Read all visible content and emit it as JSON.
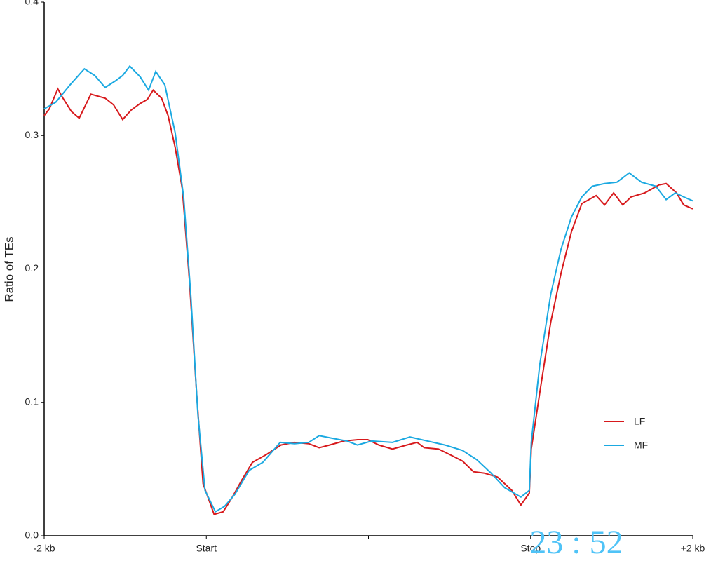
{
  "chart_data": {
    "type": "line",
    "y_label": "Ratio of TEs",
    "xlim": [
      0,
      100
    ],
    "xticks": [
      {
        "value": 0,
        "label": "-2 kb"
      },
      {
        "value": 25,
        "label": "Start"
      },
      {
        "value": 50,
        "label": null
      },
      {
        "value": 75,
        "label": "Stop"
      },
      {
        "value": 100,
        "label": "+2 kb"
      }
    ],
    "ylim": [
      0,
      0.4
    ],
    "yticks": [
      {
        "value": 0,
        "label": "0.0"
      },
      0.1,
      0.2,
      0.3,
      0.4
    ],
    "grid": false,
    "legend_position": "lower-right",
    "overlay_text": "23 : 52",
    "series": [
      {
        "name": "LF",
        "color": "#d7191c",
        "x": [
          0,
          0.8,
          2.1,
          2.9,
          4.2,
          5.4,
          7.2,
          9.4,
          10.7,
          12.1,
          13.4,
          14.8,
          15.9,
          16.8,
          18.1,
          19.1,
          20.2,
          21.3,
          22.4,
          23.5,
          24.5,
          26.2,
          27.6,
          28.9,
          30.5,
          32.1,
          34.3,
          36.5,
          38.6,
          40.8,
          42.4,
          44.0,
          46.2,
          48.3,
          49.9,
          51.6,
          53.7,
          55.9,
          57.5,
          58.6,
          60.8,
          62.9,
          64.5,
          66.2,
          67.8,
          69.9,
          72.1,
          73.5,
          74.8,
          75.1,
          76.4,
          78.1,
          79.7,
          81.3,
          82.9,
          85.1,
          86.4,
          87.8,
          89.2,
          90.5,
          92.6,
          94.8,
          95.9,
          97.5,
          98.6,
          100
        ],
        "values": [
          0.315,
          0.32,
          0.335,
          0.328,
          0.318,
          0.313,
          0.331,
          0.328,
          0.323,
          0.312,
          0.319,
          0.324,
          0.327,
          0.334,
          0.328,
          0.315,
          0.291,
          0.26,
          0.191,
          0.107,
          0.039,
          0.016,
          0.018,
          0.028,
          0.042,
          0.055,
          0.061,
          0.068,
          0.07,
          0.069,
          0.066,
          0.068,
          0.071,
          0.072,
          0.072,
          0.068,
          0.065,
          0.068,
          0.07,
          0.066,
          0.065,
          0.06,
          0.056,
          0.048,
          0.047,
          0.044,
          0.034,
          0.023,
          0.032,
          0.065,
          0.107,
          0.16,
          0.197,
          0.228,
          0.249,
          0.255,
          0.248,
          0.257,
          0.248,
          0.254,
          0.257,
          0.263,
          0.264,
          0.257,
          0.248,
          0.245
        ]
      },
      {
        "name": "MF",
        "color": "#1ba9e1",
        "x": [
          0,
          1.8,
          4.0,
          6.2,
          7.8,
          9.4,
          11.0,
          12.1,
          13.2,
          14.8,
          16.1,
          17.2,
          18.6,
          20.2,
          21.5,
          22.6,
          23.7,
          24.8,
          26.4,
          27.8,
          29.4,
          31.6,
          33.7,
          36.4,
          38.6,
          40.8,
          42.4,
          44.5,
          46.7,
          48.3,
          50.5,
          53.7,
          56.4,
          59.1,
          61.8,
          64.5,
          66.7,
          68.9,
          71.0,
          73.5,
          74.8,
          75.1,
          76.4,
          78.1,
          79.7,
          81.3,
          82.9,
          84.5,
          86.4,
          88.3,
          90.2,
          92.1,
          94.3,
          95.9,
          97.3,
          98.6,
          100
        ],
        "values": [
          0.32,
          0.325,
          0.338,
          0.35,
          0.345,
          0.336,
          0.341,
          0.345,
          0.352,
          0.344,
          0.334,
          0.348,
          0.338,
          0.302,
          0.254,
          0.181,
          0.091,
          0.034,
          0.018,
          0.022,
          0.031,
          0.049,
          0.055,
          0.07,
          0.069,
          0.07,
          0.075,
          0.073,
          0.071,
          0.068,
          0.071,
          0.07,
          0.074,
          0.071,
          0.068,
          0.064,
          0.057,
          0.047,
          0.036,
          0.029,
          0.034,
          0.07,
          0.128,
          0.181,
          0.215,
          0.239,
          0.254,
          0.262,
          0.264,
          0.265,
          0.272,
          0.265,
          0.262,
          0.252,
          0.257,
          0.254,
          0.251
        ]
      }
    ]
  }
}
